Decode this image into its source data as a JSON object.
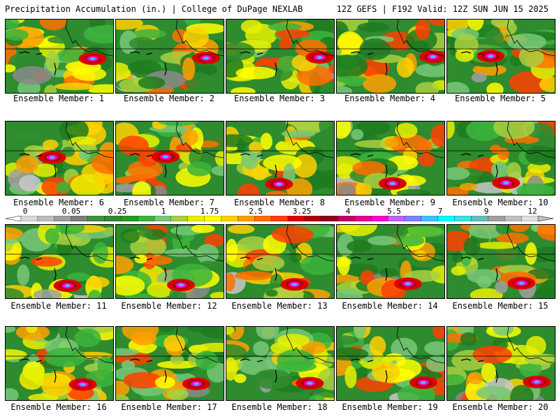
{
  "header": {
    "left": "Precipitation Accumulation (in.) | College of DuPage NEXLAB",
    "right": "12Z GEFS | F192 Valid: 12Z SUN JUN 15 2025"
  },
  "colorbar": {
    "labels": [
      "0",
      "0.05",
      "0.25",
      "1",
      "1.75",
      "2.5",
      "3.25",
      "4",
      "5.5",
      "7",
      "9",
      "12"
    ],
    "colors": [
      "#d9d9d9",
      "#bdbdbd",
      "#9e9e9e",
      "#7d7d7d",
      "#3f8f3f",
      "#2e8b2e",
      "#1fa01f",
      "#3cb43c",
      "#78c878",
      "#a8d040",
      "#e8f000",
      "#ffff00",
      "#ffd000",
      "#ffa000",
      "#ff7000",
      "#ff4000",
      "#e00000",
      "#b00000",
      "#900020",
      "#c00060",
      "#e00090",
      "#ff00d0",
      "#c060ff",
      "#8080ff",
      "#40c0ff",
      "#00ffff",
      "#40e0e0",
      "#60c0c0",
      "#a0a0a0",
      "#c0c0c0",
      "#e0e0e0"
    ]
  },
  "members": [
    {
      "label": "Ensemble Member: 1"
    },
    {
      "label": "Ensemble Member: 2"
    },
    {
      "label": "Ensemble Member: 3"
    },
    {
      "label": "Ensemble Member: 4"
    },
    {
      "label": "Ensemble Member: 5"
    },
    {
      "label": "Ensemble Member: 6"
    },
    {
      "label": "Ensemble Member: 7"
    },
    {
      "label": "Ensemble Member: 8"
    },
    {
      "label": "Ensemble Member: 9"
    },
    {
      "label": "Ensemble Member: 10"
    },
    {
      "label": "Ensemble Member: 11"
    },
    {
      "label": "Ensemble Member: 12"
    },
    {
      "label": "Ensemble Member: 13"
    },
    {
      "label": "Ensemble Member: 14"
    },
    {
      "label": "Ensemble Member: 15"
    },
    {
      "label": "Ensemble Member: 16"
    },
    {
      "label": "Ensemble Member: 17"
    },
    {
      "label": "Ensemble Member: 18"
    },
    {
      "label": "Ensemble Member: 19"
    },
    {
      "label": "Ensemble Member: 20"
    }
  ]
}
